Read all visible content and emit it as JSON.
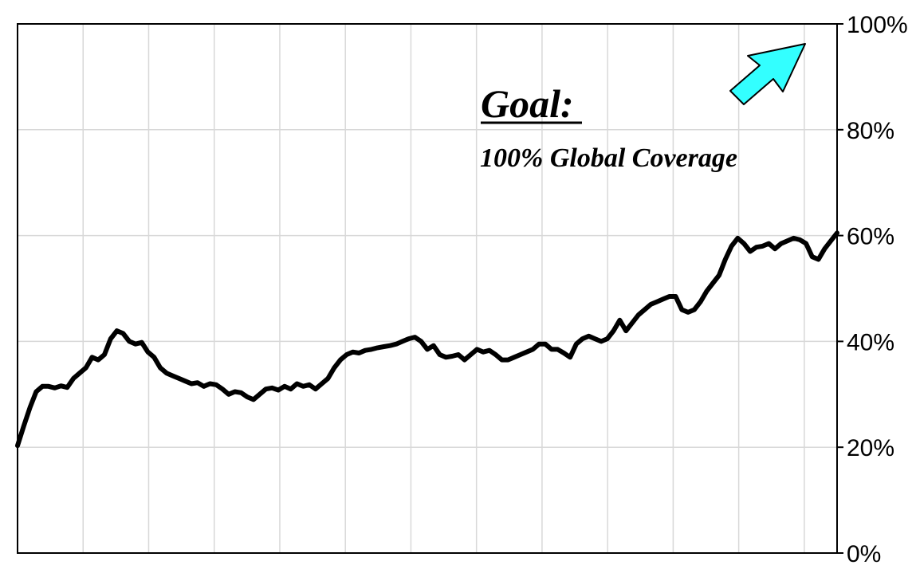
{
  "chart_data": {
    "type": "line",
    "title": "",
    "xlabel": "",
    "ylabel": "",
    "ylim": [
      0,
      100
    ],
    "yticks": [
      0,
      20,
      40,
      60,
      80,
      100
    ],
    "ytick_labels": [
      "0%",
      "20%",
      "40%",
      "60%",
      "80%",
      "100%"
    ],
    "x_gridlines": 12,
    "grid": true,
    "y_axis_side": "right",
    "series": [
      {
        "values": [
          20.3,
          24,
          27.5,
          30.5,
          31.5,
          31.5,
          31.2,
          31.6,
          31.3,
          33,
          34,
          35,
          37,
          36.5,
          37.5,
          40.5,
          42,
          41.5,
          40,
          39.5,
          39.8,
          38,
          37,
          35,
          34,
          33.5,
          33,
          32.5,
          32,
          32.2,
          31.5,
          32,
          31.8,
          31,
          30,
          30.5,
          30.3,
          29.5,
          29,
          30,
          31,
          31.2,
          30.8,
          31.5,
          31,
          32,
          31.5,
          31.8,
          31,
          32,
          33,
          35,
          36.5,
          37.5,
          38,
          37.8,
          38.3,
          38.5,
          38.8,
          39,
          39.2,
          39.5,
          40,
          40.5,
          40.8,
          40,
          38.5,
          39.2,
          37.5,
          37,
          37.2,
          37.5,
          36.5,
          37.5,
          38.5,
          38,
          38.3,
          37.5,
          36.5,
          36.5,
          37,
          37.5,
          38,
          38.5,
          39.5,
          39.5,
          38.5,
          38.5,
          37.8,
          37,
          39.5,
          40.5,
          41,
          40.5,
          40,
          40.5,
          42,
          44,
          42,
          43.5,
          45,
          46,
          47,
          47.5,
          48,
          48.5,
          48.5,
          46,
          45.5,
          46,
          47.5,
          49.5,
          51,
          52.5,
          55.5,
          58,
          59.5,
          58.5,
          57,
          57.8,
          58,
          58.5,
          57.5,
          58.5,
          59,
          59.5,
          59.2,
          58.5,
          56,
          55.5,
          57.5,
          59,
          60.5
        ]
      }
    ],
    "annotation": {
      "title": "Goal",
      "title_suffix": ":",
      "text": "100% Global Coverage",
      "arrow_color": "#33ffff",
      "arrow_stroke": "#000000"
    },
    "line_color": "#000000",
    "grid_color": "#d8d8d8"
  }
}
